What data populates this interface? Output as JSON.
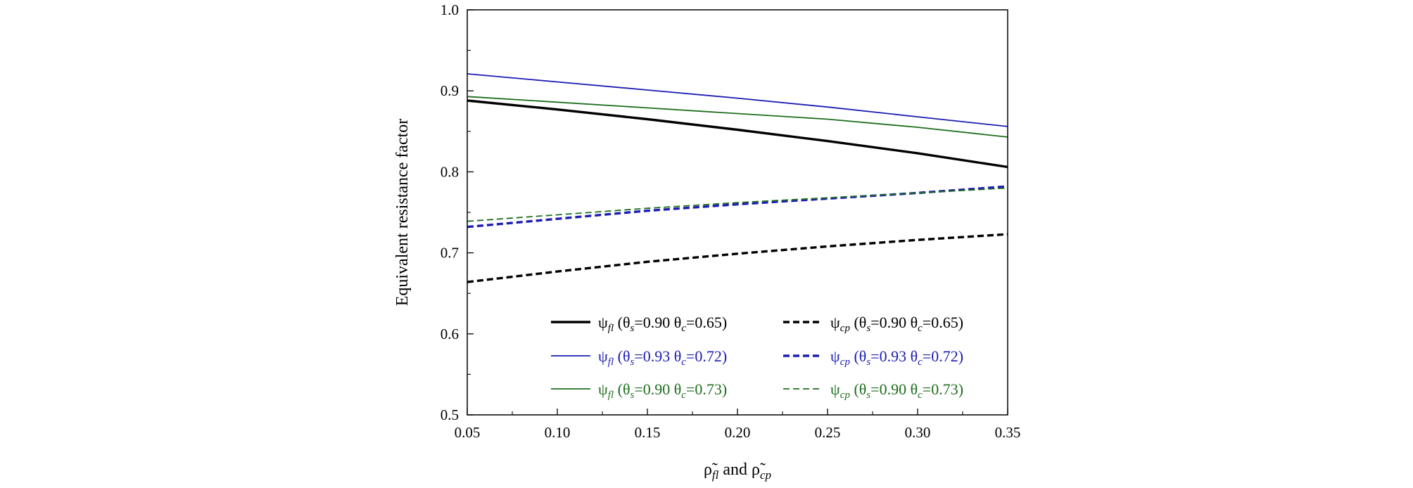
{
  "chart_data": {
    "type": "line",
    "ylabel": "Equivalent resistance factor",
    "xlabel": {
      "base": "ρ",
      "sub1": "fl",
      "mid": "and",
      "sub2": "cp"
    },
    "xlim": [
      0.05,
      0.35
    ],
    "ylim": [
      0.5,
      1.0
    ],
    "x_ticks": [
      "0.05",
      "0.10",
      "0.15",
      "0.20",
      "0.25",
      "0.30",
      "0.35"
    ],
    "y_ticks": [
      "0.5",
      "0.6",
      "0.7",
      "0.8",
      "0.9",
      "1.0"
    ],
    "x": [
      0.05,
      0.1,
      0.15,
      0.2,
      0.25,
      0.3,
      0.35
    ],
    "series": [
      {
        "name": "ψfl (θs=0.90 θc=0.65)",
        "factor": "fl",
        "theta_s": "0.90",
        "theta_c": "0.65",
        "color": "#000000",
        "style": "solid",
        "weight": "thick",
        "values": [
          0.888,
          0.877,
          0.865,
          0.852,
          0.838,
          0.823,
          0.806
        ]
      },
      {
        "name": "ψfl (θs=0.93 θc=0.72)",
        "factor": "fl",
        "theta_s": "0.93",
        "theta_c": "0.72",
        "color": "#1c1cb4",
        "style": "solid",
        "weight": "thin",
        "values": [
          0.921,
          0.911,
          0.901,
          0.891,
          0.88,
          0.868,
          0.856
        ]
      },
      {
        "name": "ψfl (θs=0.90 θc=0.73)",
        "factor": "fl",
        "theta_s": "0.90",
        "theta_c": "0.73",
        "color": "#1e6e1e",
        "style": "solid",
        "weight": "thin",
        "values": [
          0.893,
          0.886,
          0.879,
          0.872,
          0.865,
          0.855,
          0.843
        ]
      },
      {
        "name": "ψcp (θs=0.90 θc=0.65)",
        "factor": "cp",
        "theta_s": "0.90",
        "theta_c": "0.65",
        "color": "#000000",
        "style": "dashed",
        "weight": "thick",
        "values": [
          0.664,
          0.677,
          0.689,
          0.699,
          0.708,
          0.716,
          0.723
        ]
      },
      {
        "name": "ψcp (θs=0.93 θc=0.72)",
        "factor": "cp",
        "theta_s": "0.93",
        "theta_c": "0.72",
        "color": "#1c1cb4",
        "style": "dashed",
        "weight": "thick",
        "values": [
          0.732,
          0.742,
          0.752,
          0.76,
          0.767,
          0.774,
          0.782
        ]
      },
      {
        "name": "ψcp (θs=0.90 θc=0.73)",
        "factor": "cp",
        "theta_s": "0.90",
        "theta_c": "0.73",
        "color": "#1e6e1e",
        "style": "dashed",
        "weight": "thin",
        "values": [
          0.739,
          0.747,
          0.755,
          0.762,
          0.768,
          0.774,
          0.78
        ]
      }
    ],
    "legend": {
      "placement": "bottom",
      "columns": 2
    },
    "grid": false
  }
}
